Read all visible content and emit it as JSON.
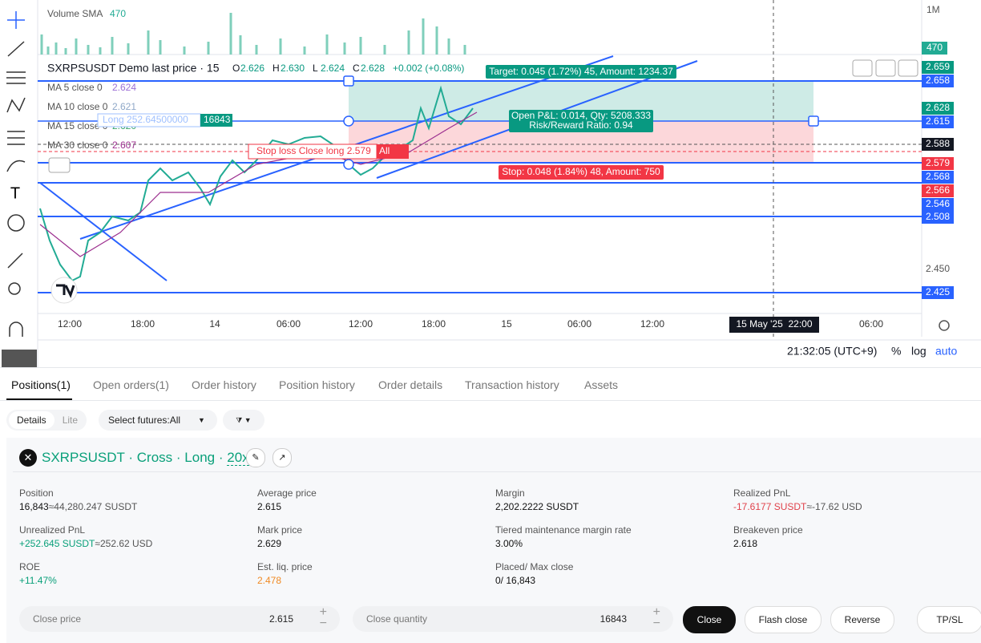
{
  "toolbar": {
    "text_tool": "T"
  },
  "chart": {
    "volume_title": "Volume SMA",
    "volume_value": "470",
    "volume_scale": "1M",
    "volume_tag": "470",
    "symbol": "SXRPSUSDT Demo last price · 15",
    "ohlc": [
      {
        "key": "O",
        "value": "2.626"
      },
      {
        "key": "H",
        "value": "2.630"
      },
      {
        "key": "L",
        "value": "2.624"
      },
      {
        "key": "C",
        "value": "2.628"
      }
    ],
    "change": "+0.002 (+0.08%)",
    "ma": [
      {
        "name": "MA 5 close 0",
        "value": "2.624",
        "color": "#9c6fd6"
      },
      {
        "name": "MA 10 close 0",
        "value": "2.621",
        "color": "#8fa8c8"
      },
      {
        "name": "MA 15 close 0",
        "value": "2.620",
        "color": "#3aa56b"
      },
      {
        "name": "MA 30 close 0",
        "value": "2.607",
        "color": "#9c2f8f"
      }
    ],
    "position_line": {
      "label": "Long 252.64500000",
      "qty": "16843"
    },
    "stop_line": {
      "label": "Stop loss Close long 2.579",
      "all": "All"
    },
    "target_label": "Target: 0.045 (1.72%) 45, Amount: 1234.37",
    "stop_label": "Stop: 0.048 (1.84%) 48, Amount: 750",
    "pnl_label": [
      "Open P&L: 0.014, Qty: 5208.333",
      "Risk/Reward Ratio: 0.94"
    ],
    "price_tags": [
      {
        "text": "2.659",
        "bg": "#089981"
      },
      {
        "text": "2.658",
        "bg": "#2962ff"
      },
      {
        "text": "2.628",
        "bg": "#089981"
      },
      {
        "text": "2.615",
        "bg": "#2962ff"
      },
      {
        "text": "2.588",
        "bg": "#131722"
      },
      {
        "text": "2.579",
        "bg": "#f23645"
      },
      {
        "text": "2.568",
        "bg": "#2962ff"
      },
      {
        "text": "2.566",
        "bg": "#f23645"
      },
      {
        "text": "2.546",
        "bg": "#2962ff"
      },
      {
        "text": "2.508",
        "bg": "#2962ff"
      },
      {
        "text": "2.425",
        "bg": "#2962ff"
      }
    ],
    "axis_ticks": [
      "2.450"
    ],
    "time_labels": [
      "12:00",
      "18:00",
      "14",
      "06:00",
      "12:00",
      "18:00",
      "15",
      "06:00",
      "12:00",
      "06:00"
    ],
    "crosshair_label": "15 May '25  22:00",
    "footer": {
      "clock": "21:32:05 (UTC+9)",
      "percent": "%",
      "log": "log",
      "auto": "auto"
    }
  },
  "tabs": [
    "Positions(1)",
    "Open orders(1)",
    "Order history",
    "Position history",
    "Order details",
    "Transaction history",
    "Assets"
  ],
  "filters": {
    "details": "Details",
    "lite": "Lite",
    "futures": "Select futures:All"
  },
  "position": {
    "symbol": "SXRPSUSDT",
    "separator": "·",
    "margin_mode": "Cross",
    "side": "Long",
    "leverage": "20x",
    "fields": [
      {
        "label": "Position",
        "value": "16,843",
        "approx": "≈44,280.247 SUSDT",
        "tone": "plain"
      },
      {
        "label": "Average price",
        "value": "2.615",
        "tone": "plain"
      },
      {
        "label": "Margin",
        "value": "2,202.2222 SUSDT",
        "tone": "plain"
      },
      {
        "label": "Realized PnL",
        "value": "-17.6177 SUSDT",
        "approx": "≈-17.62 USD",
        "tone": "down"
      },
      {
        "label": "Unrealized PnL",
        "value": "+252.645 SUSDT",
        "approx": "≈252.62 USD",
        "tone": "up"
      },
      {
        "label": "Mark price",
        "value": "2.629",
        "tone": "plain"
      },
      {
        "label": "Tiered maintenance margin rate",
        "value": "3.00%",
        "tone": "plain"
      },
      {
        "label": "Breakeven price",
        "value": "2.618",
        "tone": "plain"
      },
      {
        "label": "ROE",
        "value": "+11.47%",
        "tone": "up"
      },
      {
        "label": "Est. liq. price",
        "value": "2.478",
        "tone": "warn"
      },
      {
        "label": "Placed/ Max close",
        "value": "0/ 16,843",
        "tone": "plain"
      }
    ]
  },
  "close_bar": {
    "price_label": "Close price",
    "price": "2.615",
    "qty_label": "Close quantity",
    "qty": "16843",
    "buttons": [
      "Close",
      "Flash close",
      "Reverse",
      "TP/SL"
    ]
  }
}
